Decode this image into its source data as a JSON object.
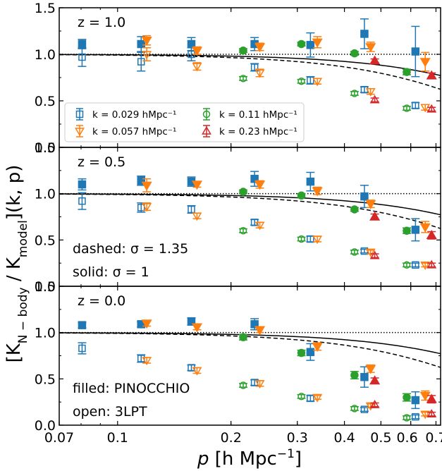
{
  "chart_data": {
    "type": "scatter",
    "ylabel_parts": [
      "[K",
      "N − body",
      " / K",
      "model",
      "](k, p)"
    ],
    "xlabel_parts": [
      "p",
      " [h Mpc",
      "−1",
      "]"
    ],
    "x_scale": "log",
    "xlim": [
      0.07,
      0.72
    ],
    "ylim": [
      0,
      1.5
    ],
    "x_ticks_major": [
      {
        "v": 0.07,
        "label": "0.07"
      },
      {
        "v": 0.1,
        "label": "0.1"
      },
      {
        "v": 0.2,
        "label": "0.2"
      },
      {
        "v": 0.3,
        "label": "0.3"
      },
      {
        "v": 0.4,
        "label": "0.4"
      },
      {
        "v": 0.5,
        "label": "0.5"
      },
      {
        "v": 0.6,
        "label": "0.6"
      },
      {
        "v": 0.7,
        "label": "0.7"
      }
    ],
    "y_ticks": [
      {
        "v": 0.0,
        "label": "0.0"
      },
      {
        "v": 0.5,
        "label": "0.5"
      },
      {
        "v": 1.0,
        "label": "1.0"
      },
      {
        "v": 1.5,
        "label": "1.5"
      }
    ],
    "legend": [
      {
        "label": "k = 0.029 hMpc⁻¹",
        "k": "k0",
        "marker": "square",
        "color": "#1f77b4"
      },
      {
        "label": "k = 0.057 hMpc⁻¹",
        "k": "k1",
        "marker": "tri_down",
        "color": "#ff7f0e"
      },
      {
        "label": "k = 0.11 hMpc⁻¹",
        "k": "k2",
        "marker": "circle",
        "color": "#2ca02c"
      },
      {
        "label": "k = 0.23 hMpc⁻¹",
        "k": "k3",
        "marker": "tri_up",
        "color": "#d62728"
      }
    ],
    "notes": {
      "dashed": "dashed: σ = 1.35",
      "solid": "solid: σ = 1",
      "filled": "filled: PINOCCHIO",
      "open": "open: 3LPT"
    },
    "panels": [
      {
        "label": "z = 1.0",
        "points": [
          {
            "k": "k0",
            "x": 0.0805,
            "y": 1.11,
            "err": 0.05,
            "filled": true
          },
          {
            "k": "k0",
            "x": 0.0805,
            "y": 0.97,
            "err": 0.1,
            "filled": false
          },
          {
            "k": "k0",
            "x": 0.1155,
            "y": 1.11,
            "err": 0.08,
            "filled": true
          },
          {
            "k": "k0",
            "x": 0.1155,
            "y": 0.92,
            "err": 0.1,
            "filled": false
          },
          {
            "k": "k0",
            "x": 0.157,
            "y": 1.11,
            "err": 0.07,
            "filled": true
          },
          {
            "k": "k0",
            "x": 0.157,
            "y": 1.0,
            "err": 0.07,
            "filled": false
          },
          {
            "k": "k0",
            "x": 0.231,
            "y": 1.11,
            "err": 0.07,
            "filled": true
          },
          {
            "k": "k0",
            "x": 0.231,
            "y": 0.86,
            "err": 0.04,
            "filled": false
          },
          {
            "k": "k0",
            "x": 0.325,
            "y": 1.1,
            "err": 0.13,
            "filled": true
          },
          {
            "k": "k0",
            "x": 0.325,
            "y": 0.72,
            "err": 0.04,
            "filled": false
          },
          {
            "k": "k0",
            "x": 0.452,
            "y": 1.22,
            "err": 0.16,
            "filled": true
          },
          {
            "k": "k0",
            "x": 0.452,
            "y": 0.62,
            "err": 0.03,
            "filled": false
          },
          {
            "k": "k0",
            "x": 0.6175,
            "y": 1.03,
            "err": 0.27,
            "filled": true
          },
          {
            "k": "k0",
            "x": 0.6175,
            "y": 0.45,
            "err": 0.03,
            "filled": false
          },
          {
            "k": "k1",
            "x": 0.1195,
            "y": 1.15,
            "err": 0.05,
            "filled": true
          },
          {
            "k": "k1",
            "x": 0.1195,
            "y": 1.0,
            "err": 0.07,
            "filled": false
          },
          {
            "k": "k1",
            "x": 0.1625,
            "y": 1.04,
            "err": 0.04,
            "filled": true
          },
          {
            "k": "k1",
            "x": 0.1625,
            "y": 0.87,
            "err": 0.04,
            "filled": false
          },
          {
            "k": "k1",
            "x": 0.2385,
            "y": 1.08,
            "err": 0.04,
            "filled": true
          },
          {
            "k": "k1",
            "x": 0.2385,
            "y": 0.8,
            "err": 0.04,
            "filled": false
          },
          {
            "k": "k1",
            "x": 0.339,
            "y": 1.13,
            "err": 0.06,
            "filled": true
          },
          {
            "k": "k1",
            "x": 0.339,
            "y": 0.71,
            "err": 0.03,
            "filled": false
          },
          {
            "k": "k1",
            "x": 0.4695,
            "y": 1.08,
            "err": 0.05,
            "filled": true
          },
          {
            "k": "k1",
            "x": 0.4695,
            "y": 0.6,
            "err": 0.03,
            "filled": false
          },
          {
            "k": "k1",
            "x": 0.6555,
            "y": 0.92,
            "err": 0.1,
            "filled": true
          },
          {
            "k": "k1",
            "x": 0.6555,
            "y": 0.43,
            "err": 0.03,
            "filled": false
          },
          {
            "k": "k2",
            "x": 0.2155,
            "y": 1.04,
            "err": 0.02,
            "filled": true
          },
          {
            "k": "k2",
            "x": 0.2155,
            "y": 0.74,
            "err": 0.02,
            "filled": false
          },
          {
            "k": "k2",
            "x": 0.3075,
            "y": 1.11,
            "err": 0.02,
            "filled": true
          },
          {
            "k": "k2",
            "x": 0.3075,
            "y": 0.71,
            "err": 0.02,
            "filled": false
          },
          {
            "k": "k2",
            "x": 0.4255,
            "y": 1.01,
            "err": 0.02,
            "filled": true
          },
          {
            "k": "k2",
            "x": 0.4255,
            "y": 0.58,
            "err": 0.02,
            "filled": false
          },
          {
            "k": "k2",
            "x": 0.5855,
            "y": 0.81,
            "err": 0.03,
            "filled": true
          },
          {
            "k": "k2",
            "x": 0.5855,
            "y": 0.42,
            "err": 0.02,
            "filled": false
          },
          {
            "k": "k3",
            "x": 0.4815,
            "y": 0.93,
            "err": 0.02,
            "filled": true
          },
          {
            "k": "k3",
            "x": 0.4815,
            "y": 0.51,
            "err": 0.02,
            "filled": false
          },
          {
            "k": "k3",
            "x": 0.6815,
            "y": 0.77,
            "err": 0.03,
            "filled": true
          },
          {
            "k": "k3",
            "x": 0.6815,
            "y": 0.41,
            "err": 0.02,
            "filled": false
          }
        ]
      },
      {
        "label": "z = 0.5",
        "points": [
          {
            "k": "k0",
            "x": 0.0805,
            "y": 1.1,
            "err": 0.06,
            "filled": true
          },
          {
            "k": "k0",
            "x": 0.0805,
            "y": 0.92,
            "err": 0.09,
            "filled": false
          },
          {
            "k": "k0",
            "x": 0.1155,
            "y": 1.14,
            "err": 0.05,
            "filled": true
          },
          {
            "k": "k0",
            "x": 0.1155,
            "y": 0.85,
            "err": 0.05,
            "filled": false
          },
          {
            "k": "k0",
            "x": 0.157,
            "y": 1.13,
            "err": 0.05,
            "filled": true
          },
          {
            "k": "k0",
            "x": 0.157,
            "y": 0.83,
            "err": 0.04,
            "filled": false
          },
          {
            "k": "k0",
            "x": 0.231,
            "y": 1.16,
            "err": 0.08,
            "filled": true
          },
          {
            "k": "k0",
            "x": 0.231,
            "y": 0.69,
            "err": 0.03,
            "filled": false
          },
          {
            "k": "k0",
            "x": 0.325,
            "y": 1.13,
            "err": 0.1,
            "filled": true
          },
          {
            "k": "k0",
            "x": 0.325,
            "y": 0.51,
            "err": 0.03,
            "filled": false
          },
          {
            "k": "k0",
            "x": 0.452,
            "y": 0.97,
            "err": 0.12,
            "filled": true
          },
          {
            "k": "k0",
            "x": 0.452,
            "y": 0.38,
            "err": 0.02,
            "filled": false
          },
          {
            "k": "k0",
            "x": 0.6175,
            "y": 0.61,
            "err": 0.12,
            "filled": true
          },
          {
            "k": "k0",
            "x": 0.6175,
            "y": 0.23,
            "err": 0.02,
            "filled": false
          },
          {
            "k": "k1",
            "x": 0.1195,
            "y": 1.09,
            "err": 0.07,
            "filled": true
          },
          {
            "k": "k1",
            "x": 0.1195,
            "y": 0.86,
            "err": 0.04,
            "filled": false
          },
          {
            "k": "k1",
            "x": 0.1625,
            "y": 1.1,
            "err": 0.03,
            "filled": true
          },
          {
            "k": "k1",
            "x": 0.1625,
            "y": 0.76,
            "err": 0.03,
            "filled": false
          },
          {
            "k": "k1",
            "x": 0.2385,
            "y": 1.1,
            "err": 0.04,
            "filled": true
          },
          {
            "k": "k1",
            "x": 0.2385,
            "y": 0.66,
            "err": 0.03,
            "filled": false
          },
          {
            "k": "k1",
            "x": 0.339,
            "y": 1.03,
            "err": 0.04,
            "filled": true
          },
          {
            "k": "k1",
            "x": 0.339,
            "y": 0.51,
            "err": 0.03,
            "filled": false
          },
          {
            "k": "k1",
            "x": 0.4695,
            "y": 0.89,
            "err": 0.04,
            "filled": true
          },
          {
            "k": "k1",
            "x": 0.4695,
            "y": 0.37,
            "err": 0.02,
            "filled": false
          },
          {
            "k": "k1",
            "x": 0.6555,
            "y": 0.64,
            "err": 0.06,
            "filled": true
          },
          {
            "k": "k1",
            "x": 0.6555,
            "y": 0.23,
            "err": 0.02,
            "filled": false
          },
          {
            "k": "k2",
            "x": 0.2155,
            "y": 1.02,
            "err": 0.02,
            "filled": true
          },
          {
            "k": "k2",
            "x": 0.2155,
            "y": 0.6,
            "err": 0.02,
            "filled": false
          },
          {
            "k": "k2",
            "x": 0.3075,
            "y": 0.98,
            "err": 0.02,
            "filled": true
          },
          {
            "k": "k2",
            "x": 0.3075,
            "y": 0.51,
            "err": 0.02,
            "filled": false
          },
          {
            "k": "k2",
            "x": 0.4255,
            "y": 0.83,
            "err": 0.02,
            "filled": true
          },
          {
            "k": "k2",
            "x": 0.4255,
            "y": 0.37,
            "err": 0.02,
            "filled": false
          },
          {
            "k": "k2",
            "x": 0.5855,
            "y": 0.6,
            "err": 0.03,
            "filled": true
          },
          {
            "k": "k2",
            "x": 0.5855,
            "y": 0.23,
            "err": 0.02,
            "filled": false
          },
          {
            "k": "k3",
            "x": 0.4815,
            "y": 0.75,
            "err": 0.03,
            "filled": true
          },
          {
            "k": "k3",
            "x": 0.4815,
            "y": 0.33,
            "err": 0.02,
            "filled": false
          },
          {
            "k": "k3",
            "x": 0.6815,
            "y": 0.55,
            "err": 0.04,
            "filled": true
          },
          {
            "k": "k3",
            "x": 0.6815,
            "y": 0.23,
            "err": 0.02,
            "filled": false
          }
        ]
      },
      {
        "label": "z = 0.0",
        "points": [
          {
            "k": "k0",
            "x": 0.0805,
            "y": 1.08,
            "err": 0.03,
            "filled": true
          },
          {
            "k": "k0",
            "x": 0.0805,
            "y": 0.83,
            "err": 0.06,
            "filled": false
          },
          {
            "k": "k0",
            "x": 0.1155,
            "y": 1.09,
            "err": 0.03,
            "filled": true
          },
          {
            "k": "k0",
            "x": 0.1155,
            "y": 0.72,
            "err": 0.04,
            "filled": false
          },
          {
            "k": "k0",
            "x": 0.157,
            "y": 1.12,
            "err": 0.04,
            "filled": true
          },
          {
            "k": "k0",
            "x": 0.157,
            "y": 0.62,
            "err": 0.03,
            "filled": false
          },
          {
            "k": "k0",
            "x": 0.231,
            "y": 1.09,
            "err": 0.06,
            "filled": true
          },
          {
            "k": "k0",
            "x": 0.231,
            "y": 0.46,
            "err": 0.03,
            "filled": false
          },
          {
            "k": "k0",
            "x": 0.325,
            "y": 0.79,
            "err": 0.09,
            "filled": true
          },
          {
            "k": "k0",
            "x": 0.325,
            "y": 0.29,
            "err": 0.03,
            "filled": false
          },
          {
            "k": "k0",
            "x": 0.452,
            "y": 0.52,
            "err": 0.11,
            "filled": true
          },
          {
            "k": "k0",
            "x": 0.452,
            "y": 0.17,
            "err": 0.02,
            "filled": false
          },
          {
            "k": "k0",
            "x": 0.6175,
            "y": 0.27,
            "err": 0.09,
            "filled": true
          },
          {
            "k": "k0",
            "x": 0.6175,
            "y": 0.09,
            "err": 0.02,
            "filled": false
          },
          {
            "k": "k1",
            "x": 0.1195,
            "y": 1.1,
            "err": 0.03,
            "filled": true
          },
          {
            "k": "k1",
            "x": 0.1195,
            "y": 0.7,
            "err": 0.03,
            "filled": false
          },
          {
            "k": "k1",
            "x": 0.1625,
            "y": 1.06,
            "err": 0.03,
            "filled": true
          },
          {
            "k": "k1",
            "x": 0.1625,
            "y": 0.59,
            "err": 0.03,
            "filled": false
          },
          {
            "k": "k1",
            "x": 0.2385,
            "y": 1.03,
            "err": 0.03,
            "filled": true
          },
          {
            "k": "k1",
            "x": 0.2385,
            "y": 0.45,
            "err": 0.03,
            "filled": false
          },
          {
            "k": "k1",
            "x": 0.339,
            "y": 0.85,
            "err": 0.04,
            "filled": true
          },
          {
            "k": "k1",
            "x": 0.339,
            "y": 0.3,
            "err": 0.02,
            "filled": false
          },
          {
            "k": "k1",
            "x": 0.4695,
            "y": 0.61,
            "err": 0.04,
            "filled": true
          },
          {
            "k": "k1",
            "x": 0.4695,
            "y": 0.21,
            "err": 0.02,
            "filled": false
          },
          {
            "k": "k1",
            "x": 0.6555,
            "y": 0.32,
            "err": 0.05,
            "filled": true
          },
          {
            "k": "k1",
            "x": 0.6555,
            "y": 0.12,
            "err": 0.02,
            "filled": false
          },
          {
            "k": "k2",
            "x": 0.2155,
            "y": 0.95,
            "err": 0.03,
            "filled": true
          },
          {
            "k": "k2",
            "x": 0.2155,
            "y": 0.43,
            "err": 0.02,
            "filled": false
          },
          {
            "k": "k2",
            "x": 0.3075,
            "y": 0.78,
            "err": 0.03,
            "filled": true
          },
          {
            "k": "k2",
            "x": 0.3075,
            "y": 0.31,
            "err": 0.02,
            "filled": false
          },
          {
            "k": "k2",
            "x": 0.4255,
            "y": 0.54,
            "err": 0.04,
            "filled": true
          },
          {
            "k": "k2",
            "x": 0.4255,
            "y": 0.18,
            "err": 0.02,
            "filled": false
          },
          {
            "k": "k2",
            "x": 0.5855,
            "y": 0.3,
            "err": 0.04,
            "filled": true
          },
          {
            "k": "k2",
            "x": 0.5855,
            "y": 0.08,
            "err": 0.02,
            "filled": false
          },
          {
            "k": "k3",
            "x": 0.4815,
            "y": 0.48,
            "err": 0.03,
            "filled": true
          },
          {
            "k": "k3",
            "x": 0.4815,
            "y": 0.22,
            "err": 0.02,
            "filled": false
          },
          {
            "k": "k3",
            "x": 0.6815,
            "y": 0.28,
            "err": 0.04,
            "filled": true
          },
          {
            "k": "k3",
            "x": 0.6815,
            "y": 0.12,
            "err": 0.02,
            "filled": false
          }
        ]
      }
    ],
    "curves": [
      {
        "style": "dotted",
        "y": 1.0
      },
      {
        "style": "dashed",
        "sigma": 1.35
      },
      {
        "style": "solid",
        "sigma": 1.0
      }
    ]
  }
}
